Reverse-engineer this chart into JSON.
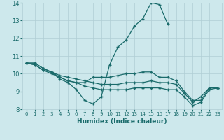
{
  "title": "",
  "xlabel": "Humidex (Indice chaleur)",
  "ylabel": "",
  "bg_color": "#cde8ec",
  "grid_color": "#b0ced4",
  "line_color": "#1a6b6b",
  "x_min": 0,
  "x_max": 23,
  "y_min": 8,
  "y_max": 14,
  "hours": [
    0,
    1,
    2,
    3,
    4,
    5,
    6,
    7,
    8,
    9,
    10,
    11,
    12,
    13,
    14,
    15,
    16,
    17,
    18,
    19,
    20,
    21,
    22,
    23
  ],
  "line1": [
    10.6,
    10.6,
    10.3,
    10.1,
    9.7,
    9.5,
    9.1,
    8.5,
    8.3,
    8.7,
    10.5,
    11.5,
    11.9,
    12.7,
    13.1,
    14.0,
    13.9,
    12.8,
    null,
    null,
    null,
    null,
    null,
    null
  ],
  "line2": [
    10.6,
    10.6,
    10.3,
    10.1,
    9.8,
    9.6,
    9.5,
    9.5,
    9.8,
    9.8,
    9.8,
    9.9,
    10.0,
    10.0,
    10.1,
    10.1,
    9.8,
    9.8,
    9.6,
    9.0,
    8.5,
    8.5,
    9.2,
    9.2
  ],
  "line3": [
    10.6,
    10.5,
    10.2,
    10.1,
    9.9,
    9.8,
    9.7,
    9.6,
    9.5,
    9.4,
    9.4,
    9.4,
    9.5,
    9.5,
    9.5,
    9.6,
    9.5,
    9.5,
    9.4,
    8.9,
    8.4,
    8.7,
    9.2,
    9.2
  ],
  "line4": [
    10.6,
    10.5,
    10.2,
    10.0,
    9.8,
    9.6,
    9.5,
    9.3,
    9.2,
    9.1,
    9.1,
    9.1,
    9.1,
    9.2,
    9.2,
    9.2,
    9.2,
    9.1,
    9.1,
    8.7,
    8.2,
    8.4,
    9.1,
    9.2
  ]
}
